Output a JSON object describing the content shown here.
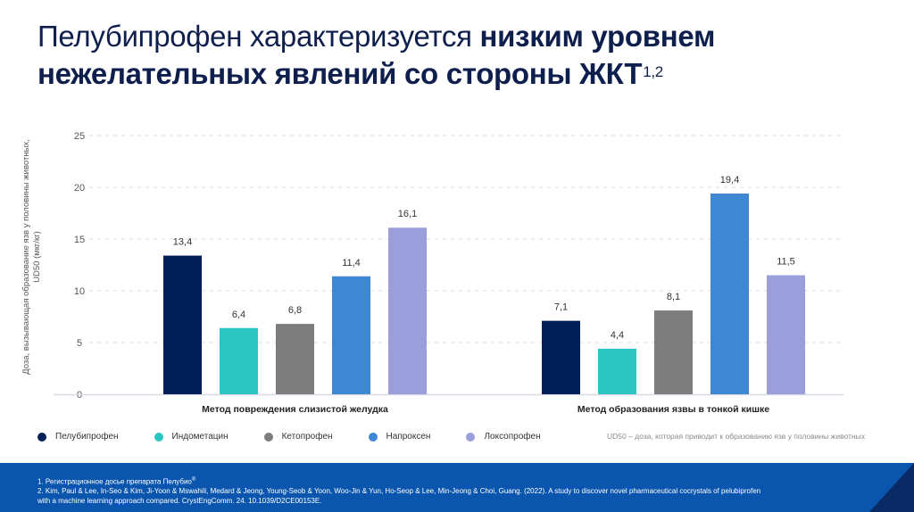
{
  "slide": {
    "title_light": "Пелубипрофен характеризуется ",
    "title_bold_1": "низким уровнем",
    "title_bold_2": "нежелательных явлений со стороны ЖКТ",
    "title_sup": "1,2"
  },
  "chart_data": {
    "type": "bar",
    "title": "",
    "ylabel": "Доза, вызывающая образование язв у половины животных, UD50 (мкг/кг)",
    "ylabel_line1": "Доза, вызывающая образование язв у половины животных,",
    "ylabel_line2": "UD50 (мкг/кг)",
    "xlabel": "",
    "ylim": [
      0,
      25
    ],
    "yticks": [
      0,
      5,
      10,
      15,
      20,
      25
    ],
    "grid": true,
    "legend_position": "bottom-left",
    "categories": [
      "Метод повреждения слизистой желудка",
      "Метод образования язвы в тонкой кишке"
    ],
    "series": [
      {
        "name": "Пелубипрофен",
        "color": "#002157",
        "values": [
          13.4,
          7.1
        ],
        "labels": [
          "13,4",
          "7,1"
        ]
      },
      {
        "name": "Индометацин",
        "color": "#2cc5c3",
        "values": [
          6.4,
          4.4
        ],
        "labels": [
          "6,4",
          "4,4"
        ]
      },
      {
        "name": "Кетопрофен",
        "color": "#7d7d7d",
        "values": [
          6.8,
          8.1
        ],
        "labels": [
          "6,8",
          "8,1"
        ]
      },
      {
        "name": "Напроксен",
        "color": "#3d87d3",
        "values": [
          11.4,
          19.4
        ],
        "labels": [
          "11,4",
          "19,4"
        ]
      },
      {
        "name": "Локсопрофен",
        "color": "#9a9fdc",
        "values": [
          16.1,
          11.5
        ],
        "labels": [
          "16,1",
          "11,5"
        ]
      }
    ]
  },
  "notes": {
    "ud50": "UD50 – доза, которая приводит к образованию язв у половины животных"
  },
  "footer": {
    "ref1": "1. Регистрационное досье препарата Пелубио",
    "ref1_sup": "®",
    "ref2_line1": "2. Kim, Paul & Lee, In-Seo & Kim, Ji-Yoon & Mswahili, Medard & Jeong, Young-Seob & Yoon, Woo-Jin & Yun, Ho-Seop & Lee, Min-Jeong & Choi, Guang. (2022). A study to discover novel pharmaceutical cocrystals of pelubiprofen",
    "ref2_line2": "with a machine learning approach compared. CrystEngComm. 24. 10.1039/D2CE00153E."
  }
}
